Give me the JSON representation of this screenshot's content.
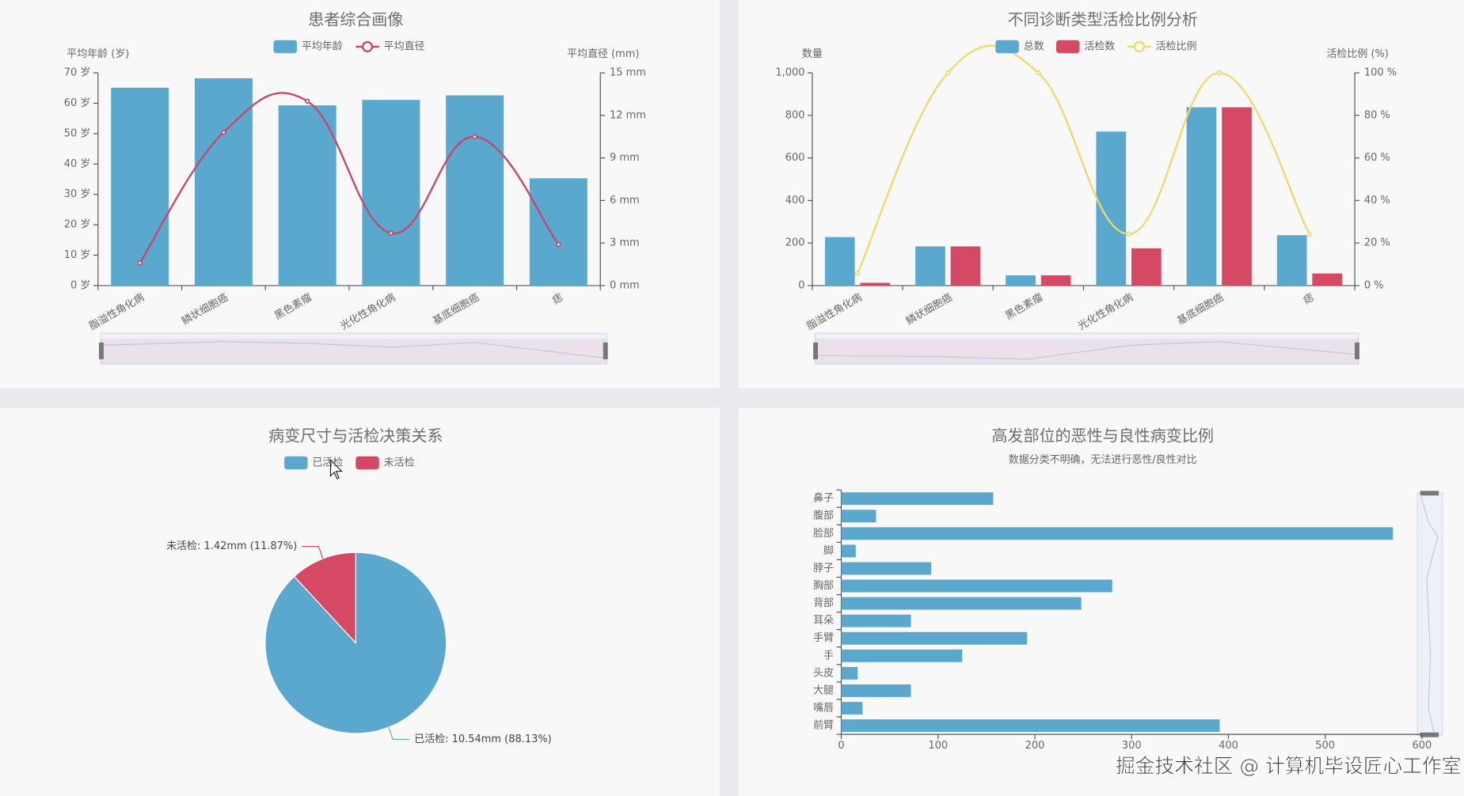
{
  "chart_data": [
    {
      "type": "combo",
      "title": "患者综合画像",
      "categories": [
        "脂溢性角化病",
        "鳞状细胞癌",
        "黑色素瘤",
        "光化性角化病",
        "基底细胞癌",
        "痣"
      ],
      "series": [
        {
          "name": "平均年龄",
          "type": "bar",
          "color": "#5ba8cf",
          "values": [
            65.1,
            68.2,
            59.3,
            61.1,
            62.6,
            35.3
          ]
        },
        {
          "name": "平均直径",
          "type": "line",
          "axis": "y2",
          "color": "#c9466a",
          "values": [
            1.6,
            10.8,
            13.0,
            3.7,
            10.5,
            2.9
          ]
        }
      ],
      "ylabel": "平均年龄 (岁)",
      "y2label": "平均直径 (mm)",
      "ylim": [
        0,
        70
      ],
      "yticks": [
        {
          "value": 0,
          "label": "0 岁"
        },
        {
          "value": 10,
          "label": "10 岁"
        },
        {
          "value": 20,
          "label": "20 岁"
        },
        {
          "value": 30,
          "label": "30 岁"
        },
        {
          "value": 40,
          "label": "40 岁"
        },
        {
          "value": 50,
          "label": "50 岁"
        },
        {
          "value": 60,
          "label": "60 岁"
        },
        {
          "value": 70,
          "label": "70 岁"
        }
      ],
      "y2lim": [
        0,
        15
      ],
      "y2ticks": [
        {
          "value": 0,
          "label": "0 mm"
        },
        {
          "value": 3,
          "label": "3 mm"
        },
        {
          "value": 6,
          "label": "6 mm"
        },
        {
          "value": 9,
          "label": "9 mm"
        },
        {
          "value": 12,
          "label": "12 mm"
        },
        {
          "value": 15,
          "label": "15 mm"
        }
      ]
    },
    {
      "type": "combo",
      "title": "不同诊断类型活检比例分析",
      "categories": [
        "脂溢性角化病",
        "鳞状细胞癌",
        "黑色素瘤",
        "光化性角化病",
        "基底细胞癌",
        "痣"
      ],
      "series": [
        {
          "name": "总数",
          "type": "bar",
          "color": "#5ba8cf",
          "values": [
            228,
            184,
            48,
            724,
            838,
            237
          ]
        },
        {
          "name": "活检数",
          "type": "bar",
          "color": "#d44a64",
          "values": [
            13,
            184,
            48,
            175,
            838,
            57
          ]
        },
        {
          "name": "活检比例",
          "type": "line",
          "axis": "y2",
          "color": "#f0d96a",
          "values": [
            5.7,
            100,
            100,
            24.2,
            100,
            24.1
          ]
        }
      ],
      "ylabel": "数量",
      "y2label": "活检比例 (%)",
      "ylim": [
        0,
        1000
      ],
      "yticks": [
        0,
        200,
        400,
        600,
        800,
        {
          "value": 1000,
          "label": "1,000"
        }
      ],
      "y2lim": [
        0,
        100
      ],
      "y2ticks": [
        {
          "value": 0,
          "label": "0 %"
        },
        {
          "value": 20,
          "label": "20 %"
        },
        {
          "value": 40,
          "label": "40 %"
        },
        {
          "value": 60,
          "label": "60 %"
        },
        {
          "value": 80,
          "label": "80 %"
        },
        {
          "value": 100,
          "label": "100 %"
        }
      ]
    },
    {
      "type": "pie",
      "title": "病变尺寸与活检决策关系",
      "categories": [
        "已活检",
        "未活检"
      ],
      "values": [
        10.54,
        1.42
      ],
      "value_labels": [
        "已活检: 10.54mm (88.13%)",
        "未活检: 1.42mm (11.87%)"
      ],
      "colors": [
        "#5ba8cf",
        "#d44a64"
      ]
    },
    {
      "type": "bar",
      "horizontal": true,
      "title": "高发部位的恶性与良性病变比例",
      "subtitle": "数据分类不明确，无法进行恶性/良性对比",
      "categories": [
        "鼻子",
        "腹部",
        "脸部",
        "脚",
        "脖子",
        "胸部",
        "背部",
        "耳朵",
        "手臂",
        "手",
        "头皮",
        "大腿",
        "嘴唇",
        "前臂"
      ],
      "values": [
        157,
        36,
        570,
        15,
        93,
        280,
        248,
        72,
        192,
        125,
        17,
        72,
        22,
        391
      ],
      "color": "#5ba8cf",
      "xlim": [
        0,
        600
      ],
      "xticks": [
        0,
        100,
        200,
        300,
        400,
        500,
        600
      ]
    }
  ],
  "watermark": "掘金技术社区 @ 计算机毕设匠心工作室"
}
